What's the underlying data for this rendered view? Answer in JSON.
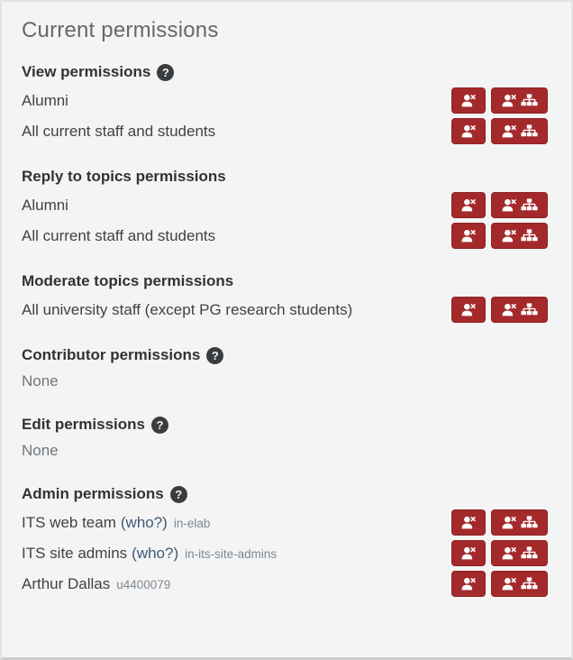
{
  "page": {
    "title": "Current permissions"
  },
  "icons": {
    "help": "?",
    "remove_user": "user-x",
    "remove_user_tree": "user-x-sitemap"
  },
  "colors": {
    "button_red": "#a4292b",
    "link_blue": "#3e5a75",
    "panel_bg": "#f4f4f4"
  },
  "sections": [
    {
      "title": "View permissions",
      "rows": [
        {
          "label": "Alumni"
        },
        {
          "label": "All current staff and students"
        }
      ]
    },
    {
      "title": "Reply to topics permissions",
      "rows": [
        {
          "label": "Alumni"
        },
        {
          "label": "All current staff and students"
        }
      ]
    },
    {
      "title": "Moderate topics permissions",
      "rows": [
        {
          "label": "All university staff (except PG research students)"
        }
      ]
    },
    {
      "title": "Contributor permissions",
      "rows": [
        {
          "label": "None"
        }
      ]
    },
    {
      "title": "Edit permissions",
      "rows": [
        {
          "label": "None"
        }
      ]
    },
    {
      "title": "Admin permissions",
      "rows": [
        {
          "label": "ITS web team",
          "who_link": "(who?)",
          "code": "in-elab"
        },
        {
          "label": "ITS site admins",
          "who_link": "(who?)",
          "code": "in-its-site-admins"
        },
        {
          "label": "Arthur Dallas",
          "code": "u4400079"
        }
      ]
    }
  ]
}
